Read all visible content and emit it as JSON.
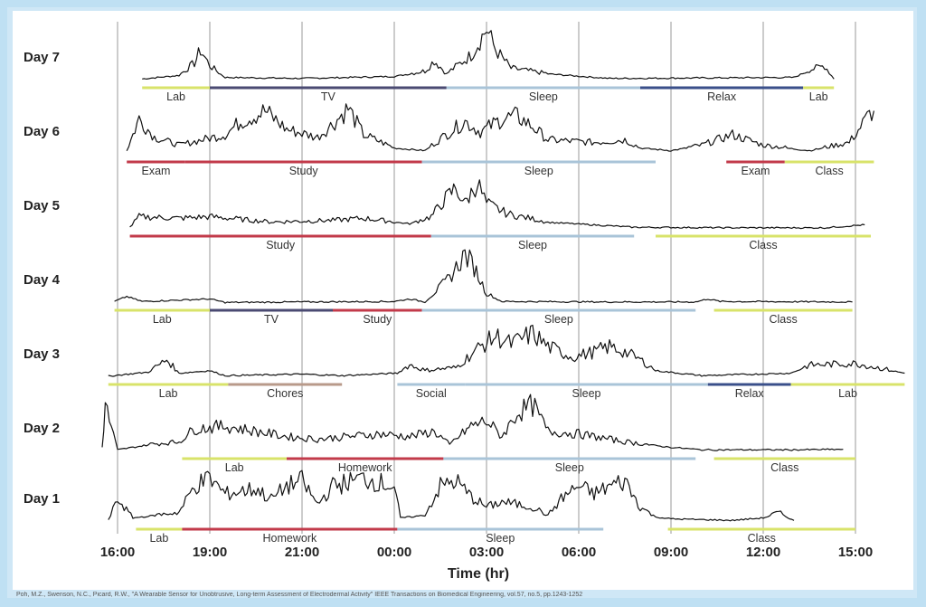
{
  "chart_data": {
    "type": "line",
    "title": "",
    "xlabel": "Time (hr)",
    "ylabel": "",
    "x_ticks": [
      "16:00",
      "19:00",
      "21:00",
      "00:00",
      "03:00",
      "06:00",
      "09:00",
      "12:00",
      "15:00"
    ],
    "x_range_hours_from_start": [
      0,
      24
    ],
    "grid": "vertical lines at each 3-hour tick",
    "activity_colors": {
      "Lab": "#d8e36a",
      "TV": "#4a4a72",
      "Sleep": "#a9c4d8",
      "Relax": "#3a4f8a",
      "Exam": "#c23a4a",
      "Study": "#c23a4a",
      "Class": "#d8e36a",
      "Chores": "#b89a8a",
      "Social": "#a9c4d8",
      "Homework": "#c23a4a"
    },
    "days": [
      {
        "name": "Day 7",
        "segments": [
          {
            "label": "Lab",
            "start": 0.8,
            "end": 3.0
          },
          {
            "label": "TV",
            "start": 3.0,
            "end": 10.7
          },
          {
            "label": "Sleep",
            "start": 10.7,
            "end": 17.0
          },
          {
            "label": "Relax",
            "start": 17.0,
            "end": 22.3
          },
          {
            "label": "Lab",
            "start": 22.3,
            "end": 23.3
          }
        ],
        "eda": [
          [
            0.8,
            0.05
          ],
          [
            2.0,
            0.12
          ],
          [
            2.5,
            0.35
          ],
          [
            2.7,
            0.6
          ],
          [
            3.0,
            0.3
          ],
          [
            3.5,
            0.08
          ],
          [
            6.0,
            0.06
          ],
          [
            9.0,
            0.1
          ],
          [
            10.0,
            0.2
          ],
          [
            10.3,
            0.4
          ],
          [
            10.7,
            0.15
          ],
          [
            11.5,
            0.5
          ],
          [
            12.0,
            1.0
          ],
          [
            12.3,
            0.6
          ],
          [
            12.8,
            0.25
          ],
          [
            14.0,
            0.15
          ],
          [
            16.0,
            0.06
          ],
          [
            22.0,
            0.08
          ],
          [
            22.5,
            0.22
          ],
          [
            23.0,
            0.3
          ],
          [
            23.3,
            0.05
          ]
        ]
      },
      {
        "name": "Day 6",
        "segments": [
          {
            "label": "Exam",
            "start": 0.3,
            "end": 2.2
          },
          {
            "label": "Study",
            "start": 2.2,
            "end": 9.9
          },
          {
            "label": "Sleep",
            "start": 9.9,
            "end": 17.5
          },
          {
            "label": "Exam",
            "start": 19.8,
            "end": 21.7
          },
          {
            "label": "Class",
            "start": 21.7,
            "end": 24.6
          }
        ],
        "eda": [
          [
            0.3,
            0.1
          ],
          [
            0.7,
            0.7
          ],
          [
            1.2,
            0.35
          ],
          [
            2.0,
            0.2
          ],
          [
            3.5,
            0.4
          ],
          [
            4.0,
            0.65
          ],
          [
            4.8,
            0.85
          ],
          [
            5.5,
            0.5
          ],
          [
            6.5,
            0.35
          ],
          [
            7.0,
            0.6
          ],
          [
            7.5,
            0.9
          ],
          [
            8.0,
            0.4
          ],
          [
            9.0,
            0.15
          ],
          [
            10.0,
            0.1
          ],
          [
            10.8,
            0.45
          ],
          [
            11.3,
            0.65
          ],
          [
            11.8,
            0.45
          ],
          [
            12.5,
            0.7
          ],
          [
            13.0,
            0.75
          ],
          [
            13.5,
            0.55
          ],
          [
            14.0,
            0.3
          ],
          [
            15.5,
            0.25
          ],
          [
            16.5,
            0.3
          ],
          [
            17.0,
            0.15
          ],
          [
            18.0,
            0.1
          ],
          [
            19.0,
            0.2
          ],
          [
            20.0,
            0.4
          ],
          [
            21.0,
            0.2
          ],
          [
            22.5,
            0.1
          ],
          [
            23.8,
            0.25
          ],
          [
            24.6,
            0.9
          ]
        ]
      },
      {
        "name": "Day 5",
        "segments": [
          {
            "label": "Study",
            "start": 0.4,
            "end": 10.2
          },
          {
            "label": "Sleep",
            "start": 10.2,
            "end": 16.8
          },
          {
            "label": "Class",
            "start": 17.5,
            "end": 24.5
          }
        ],
        "eda": [
          [
            0.4,
            0.05
          ],
          [
            0.7,
            0.25
          ],
          [
            2.0,
            0.22
          ],
          [
            3.0,
            0.25
          ],
          [
            4.0,
            0.2
          ],
          [
            5.0,
            0.15
          ],
          [
            7.0,
            0.18
          ],
          [
            8.0,
            0.22
          ],
          [
            9.5,
            0.12
          ],
          [
            10.2,
            0.25
          ],
          [
            10.6,
            0.55
          ],
          [
            11.0,
            0.8
          ],
          [
            11.3,
            0.5
          ],
          [
            11.7,
            0.9
          ],
          [
            12.0,
            0.5
          ],
          [
            12.7,
            0.3
          ],
          [
            14.0,
            0.15
          ],
          [
            16.0,
            0.08
          ],
          [
            16.8,
            0.05
          ],
          [
            17.0,
            0.05
          ],
          [
            20.0,
            0.04
          ],
          [
            23.0,
            0.04
          ],
          [
            24.3,
            0.1
          ]
        ]
      },
      {
        "name": "Day 4",
        "segments": [
          {
            "label": "Lab",
            "start": -0.1,
            "end": 3.0
          },
          {
            "label": "TV",
            "start": 3.0,
            "end": 7.0
          },
          {
            "label": "Study",
            "start": 7.0,
            "end": 9.9
          },
          {
            "label": "Sleep",
            "start": 9.9,
            "end": 18.8
          },
          {
            "label": "Class",
            "start": 19.4,
            "end": 23.9
          }
        ],
        "eda": [
          [
            -0.1,
            0.05
          ],
          [
            0.3,
            0.15
          ],
          [
            0.8,
            0.05
          ],
          [
            3.0,
            0.1
          ],
          [
            3.5,
            0.03
          ],
          [
            6.0,
            0.04
          ],
          [
            9.0,
            0.05
          ],
          [
            9.5,
            0.1
          ],
          [
            10.0,
            0.04
          ],
          [
            10.8,
            0.5
          ],
          [
            11.3,
            0.95
          ],
          [
            11.6,
            0.7
          ],
          [
            12.0,
            0.2
          ],
          [
            12.5,
            0.05
          ],
          [
            16.0,
            0.04
          ],
          [
            18.8,
            0.04
          ],
          [
            19.2,
            0.1
          ],
          [
            19.6,
            0.05
          ],
          [
            23.9,
            0.04
          ]
        ]
      },
      {
        "name": "Day 3",
        "segments": [
          {
            "label": "Lab",
            "start": -0.3,
            "end": 3.6
          },
          {
            "label": "Chores",
            "start": 3.6,
            "end": 7.3
          },
          {
            "label": "Social",
            "start": 9.1,
            "end": 11.3
          },
          {
            "label": "Sleep",
            "start": 11.3,
            "end": 19.2
          },
          {
            "label": "Relax",
            "start": 19.2,
            "end": 21.9
          },
          {
            "label": "Lab",
            "start": 21.9,
            "end": 25.6
          }
        ],
        "eda": [
          [
            -0.3,
            0.04
          ],
          [
            1.0,
            0.12
          ],
          [
            1.6,
            0.35
          ],
          [
            2.0,
            0.1
          ],
          [
            3.0,
            0.15
          ],
          [
            3.5,
            0.05
          ],
          [
            6.0,
            0.08
          ],
          [
            7.3,
            0.05
          ],
          [
            9.1,
            0.1
          ],
          [
            9.5,
            0.25
          ],
          [
            10.0,
            0.15
          ],
          [
            11.0,
            0.2
          ],
          [
            11.8,
            0.6
          ],
          [
            12.3,
            0.8
          ],
          [
            12.8,
            0.65
          ],
          [
            13.5,
            0.85
          ],
          [
            14.0,
            0.6
          ],
          [
            14.8,
            0.4
          ],
          [
            15.5,
            0.5
          ],
          [
            16.0,
            0.6
          ],
          [
            16.5,
            0.5
          ],
          [
            17.0,
            0.35
          ],
          [
            17.5,
            0.15
          ],
          [
            19.0,
            0.05
          ],
          [
            21.9,
            0.1
          ],
          [
            22.5,
            0.25
          ],
          [
            24.0,
            0.28
          ],
          [
            25.6,
            0.1
          ]
        ]
      },
      {
        "name": "Day 2",
        "segments": [
          {
            "label": "Lab",
            "start": 2.1,
            "end": 5.5
          },
          {
            "label": "Homework",
            "start": 5.5,
            "end": 10.6
          },
          {
            "label": "Sleep",
            "start": 10.6,
            "end": 18.8
          },
          {
            "label": "Class",
            "start": 19.4,
            "end": 24.0
          }
        ],
        "eda": [
          [
            -0.5,
            0.1
          ],
          [
            -0.4,
            0.9
          ],
          [
            0.0,
            0.05
          ],
          [
            1.0,
            0.15
          ],
          [
            2.0,
            0.2
          ],
          [
            2.5,
            0.45
          ],
          [
            3.5,
            0.5
          ],
          [
            4.5,
            0.4
          ],
          [
            5.5,
            0.3
          ],
          [
            6.5,
            0.25
          ],
          [
            7.5,
            0.3
          ],
          [
            8.5,
            0.35
          ],
          [
            9.5,
            0.3
          ],
          [
            10.3,
            0.4
          ],
          [
            10.8,
            0.15
          ],
          [
            11.5,
            0.5
          ],
          [
            12.0,
            0.6
          ],
          [
            12.5,
            0.3
          ],
          [
            13.0,
            0.75
          ],
          [
            13.5,
            0.9
          ],
          [
            14.0,
            0.4
          ],
          [
            15.0,
            0.35
          ],
          [
            15.5,
            0.3
          ],
          [
            16.5,
            0.2
          ],
          [
            18.0,
            0.1
          ],
          [
            19.0,
            0.05
          ],
          [
            22.0,
            0.05
          ],
          [
            23.6,
            0.06
          ]
        ]
      },
      {
        "name": "Day 1",
        "segments": [
          {
            "label": "Lab",
            "start": 0.6,
            "end": 2.1
          },
          {
            "label": "Homework",
            "start": 2.1,
            "end": 9.1
          },
          {
            "label": "Sleep",
            "start": 9.1,
            "end": 15.8
          },
          {
            "label": "Class",
            "start": 17.9,
            "end": 24.0
          }
        ],
        "eda": [
          [
            -0.3,
            0.05
          ],
          [
            0.0,
            0.45
          ],
          [
            0.5,
            0.1
          ],
          [
            2.0,
            0.2
          ],
          [
            2.5,
            0.7
          ],
          [
            3.0,
            0.85
          ],
          [
            3.5,
            0.55
          ],
          [
            4.5,
            0.65
          ],
          [
            5.0,
            0.45
          ],
          [
            5.5,
            0.7
          ],
          [
            6.0,
            0.8
          ],
          [
            6.5,
            0.35
          ],
          [
            7.0,
            0.7
          ],
          [
            8.0,
            0.85
          ],
          [
            9.0,
            0.7
          ],
          [
            9.2,
            0.1
          ],
          [
            10.0,
            0.15
          ],
          [
            10.5,
            0.7
          ],
          [
            11.0,
            0.8
          ],
          [
            11.5,
            0.5
          ],
          [
            12.0,
            0.3
          ],
          [
            12.5,
            0.4
          ],
          [
            13.5,
            0.3
          ],
          [
            14.0,
            0.15
          ],
          [
            14.5,
            0.5
          ],
          [
            15.0,
            0.7
          ],
          [
            15.5,
            0.55
          ],
          [
            16.0,
            0.7
          ],
          [
            16.5,
            0.8
          ],
          [
            17.0,
            0.3
          ],
          [
            17.5,
            0.12
          ],
          [
            18.0,
            0.08
          ],
          [
            20.0,
            0.05
          ],
          [
            21.0,
            0.1
          ],
          [
            21.5,
            0.2
          ],
          [
            22.0,
            0.05
          ]
        ]
      }
    ]
  },
  "citation": "Poh, M.Z., Swenson, N.C., Picard, R.W., \"A Wearable Sensor for Unobtrusive, Long-term Assessment of Electrodermal Activity\" IEEE Transactions on Biomedical Engineering, vol.57, no.5, pp.1243-1252"
}
